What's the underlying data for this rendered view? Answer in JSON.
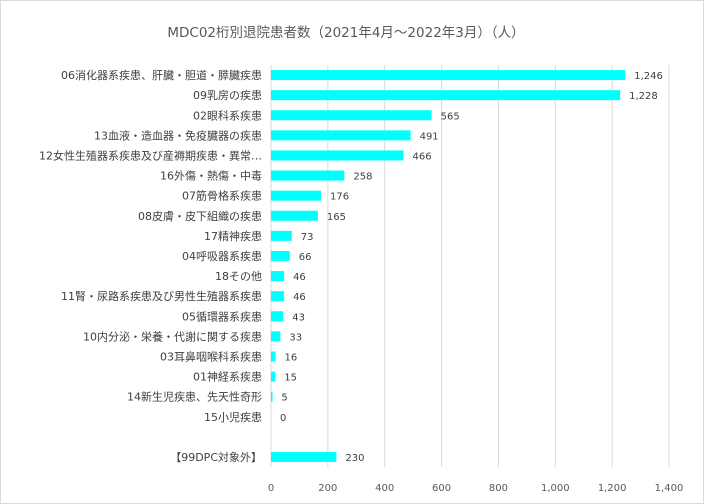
{
  "chart_data": {
    "type": "bar",
    "orientation": "horizontal",
    "title": "MDC02桁別退院患者数（2021年4月～2022年3月）（人）",
    "xlabel": "",
    "ylabel": "",
    "xlim": [
      0,
      1400
    ],
    "x_ticks": [
      0,
      200,
      400,
      600,
      800,
      1000,
      1200,
      1400
    ],
    "x_tick_labels": [
      "0",
      "200",
      "400",
      "600",
      "800",
      "1,000",
      "1,200",
      "1,400"
    ],
    "grid": true,
    "bar_color": "#00ffff",
    "categories": [
      "06消化器系疾患、肝臓・胆道・膵臓疾患",
      "09乳房の疾患",
      "02眼科系疾患",
      "13血液・造血器・免疫臓器の疾患",
      "12女性生殖器系疾患及び産褥期疾患・異常…",
      "16外傷・熱傷・中毒",
      "07筋骨格系疾患",
      "08皮膚・皮下組織の疾患",
      "17精神疾患",
      "04呼吸器系疾患",
      "18その他",
      "11腎・尿路系疾患及び男性生殖器系疾患",
      "05循環器系疾患",
      "10内分泌・栄養・代謝に関する疾患",
      "03耳鼻咽喉科系疾患",
      "01神経系疾患",
      "14新生児疾患、先天性奇形",
      "15小児疾患",
      "",
      "【99DPC対象外】"
    ],
    "values": [
      1246,
      1228,
      565,
      491,
      466,
      258,
      176,
      165,
      73,
      66,
      46,
      46,
      43,
      33,
      16,
      15,
      5,
      0,
      null,
      230
    ],
    "value_labels": [
      "1,246",
      "1,228",
      "565",
      "491",
      "466",
      "258",
      "176",
      "165",
      "73",
      "66",
      "46",
      "46",
      "43",
      "33",
      "16",
      "15",
      "5",
      "0",
      "",
      "230"
    ]
  }
}
